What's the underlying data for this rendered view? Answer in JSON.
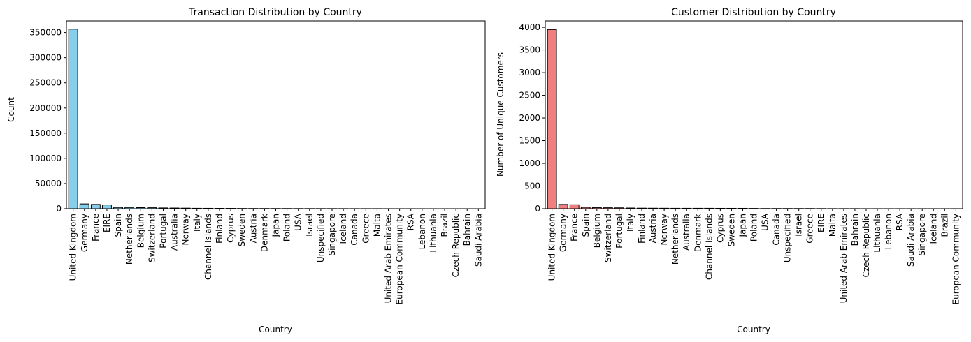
{
  "chart_data": [
    {
      "type": "bar",
      "title": "Transaction Distribution by Country",
      "xlabel": "Country",
      "ylabel": "Count",
      "ylim": [
        0,
        373000
      ],
      "yticks": [
        0,
        50000,
        100000,
        150000,
        200000,
        250000,
        300000,
        350000
      ],
      "bar_color": "#87ceeb",
      "edge_color": "#000000",
      "grid": false,
      "categories": [
        "United Kingdom",
        "Germany",
        "France",
        "EIRE",
        "Spain",
        "Netherlands",
        "Belgium",
        "Switzerland",
        "Portugal",
        "Australia",
        "Norway",
        "Italy",
        "Channel Islands",
        "Finland",
        "Cyprus",
        "Sweden",
        "Austria",
        "Denmark",
        "Japan",
        "Poland",
        "USA",
        "Israel",
        "Unspecified",
        "Singapore",
        "Iceland",
        "Canada",
        "Greece",
        "Malta",
        "United Arab Emirates",
        "European Community",
        "RSA",
        "Lebanon",
        "Lithuania",
        "Brazil",
        "Czech Republic",
        "Bahrain",
        "Saudi Arabia"
      ],
      "values": [
        356700,
        9500,
        8500,
        7500,
        2500,
        2400,
        2100,
        1900,
        1500,
        1300,
        1100,
        800,
        750,
        700,
        620,
        460,
        400,
        390,
        360,
        340,
        290,
        250,
        240,
        230,
        180,
        150,
        140,
        130,
        70,
        60,
        58,
        45,
        35,
        32,
        30,
        17,
        10
      ]
    },
    {
      "type": "bar",
      "title": "Customer Distribution by Country",
      "xlabel": "Country",
      "ylabel": "Number of Unique Customers",
      "ylim": [
        0,
        4140
      ],
      "yticks": [
        0,
        500,
        1000,
        1500,
        2000,
        2500,
        3000,
        3500,
        4000
      ],
      "bar_color": "#f08080",
      "edge_color": "#000000",
      "grid": false,
      "categories": [
        "United Kingdom",
        "Germany",
        "France",
        "Spain",
        "Belgium",
        "Switzerland",
        "Portugal",
        "Italy",
        "Finland",
        "Austria",
        "Norway",
        "Netherlands",
        "Australia",
        "Denmark",
        "Channel Islands",
        "Cyprus",
        "Sweden",
        "Japan",
        "Poland",
        "USA",
        "Canada",
        "Unspecified",
        "Israel",
        "Greece",
        "EIRE",
        "Malta",
        "United Arab Emirates",
        "Bahrain",
        "Czech Republic",
        "Lithuania",
        "Lebanon",
        "RSA",
        "Saudi Arabia",
        "Singapore",
        "Iceland",
        "Brazil",
        "European Community"
      ],
      "values": [
        3950,
        94,
        87,
        30,
        25,
        21,
        19,
        15,
        12,
        11,
        10,
        9,
        9,
        9,
        9,
        8,
        8,
        8,
        6,
        4,
        4,
        4,
        4,
        4,
        3,
        2,
        2,
        2,
        1,
        1,
        1,
        1,
        1,
        1,
        1,
        1,
        1
      ]
    }
  ]
}
